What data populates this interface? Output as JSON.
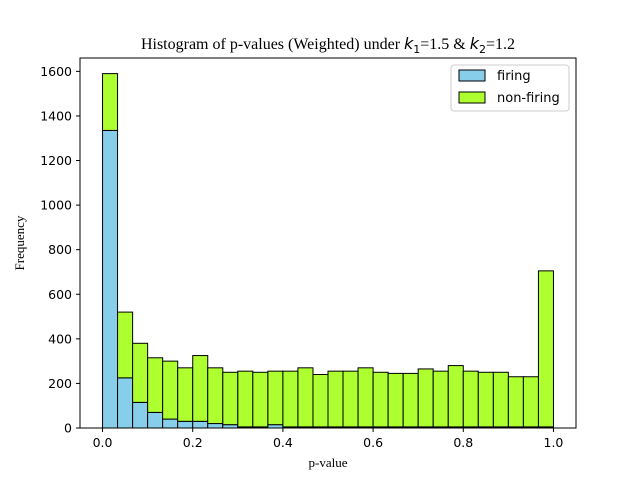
{
  "chart_data": {
    "type": "bar",
    "subtype": "stacked-histogram",
    "title": {
      "prefix": "Histogram of p-values (Weighted) under ",
      "k1_symbol": "k",
      "k1_sub": "1",
      "k1_value": "=1.5 & ",
      "k2_symbol": "k",
      "k2_sub": "2",
      "k2_value": "=1.2"
    },
    "xlabel": "p-value",
    "ylabel": "Frequency",
    "xlim": [
      -0.05,
      1.05
    ],
    "ylim": [
      0,
      1660
    ],
    "x_ticks": [
      0.0,
      0.2,
      0.4,
      0.6,
      0.8,
      1.0
    ],
    "x_tick_labels": [
      "0.0",
      "0.2",
      "0.4",
      "0.6",
      "0.8",
      "1.0"
    ],
    "y_ticks": [
      0,
      200,
      400,
      600,
      800,
      1000,
      1200,
      1400,
      1600
    ],
    "y_tick_labels": [
      "0",
      "200",
      "400",
      "600",
      "800",
      "1000",
      "1200",
      "1400",
      "1600"
    ],
    "bin_edges": [
      0.0,
      0.0333,
      0.0667,
      0.1,
      0.1333,
      0.1667,
      0.2,
      0.2333,
      0.2667,
      0.3,
      0.3333,
      0.3667,
      0.4,
      0.4333,
      0.4667,
      0.5,
      0.5333,
      0.5667,
      0.6,
      0.6333,
      0.6667,
      0.7,
      0.7333,
      0.7667,
      0.8,
      0.8333,
      0.8667,
      0.9,
      0.9333,
      0.9667,
      1.0
    ],
    "grid": false,
    "legend_position": "top-right",
    "series": [
      {
        "name": "firing",
        "color": "#87ceeb",
        "values": [
          1335,
          225,
          115,
          70,
          40,
          30,
          30,
          20,
          15,
          5,
          5,
          15,
          5,
          5,
          5,
          5,
          5,
          5,
          5,
          5,
          5,
          5,
          5,
          5,
          5,
          5,
          5,
          5,
          5,
          5
        ]
      },
      {
        "name": "non-firing",
        "color": "#adff2f",
        "values": [
          255,
          295,
          265,
          245,
          260,
          240,
          295,
          250,
          235,
          250,
          245,
          240,
          250,
          265,
          235,
          250,
          250,
          265,
          245,
          240,
          240,
          260,
          250,
          275,
          250,
          245,
          245,
          225,
          225,
          700
        ]
      }
    ]
  }
}
